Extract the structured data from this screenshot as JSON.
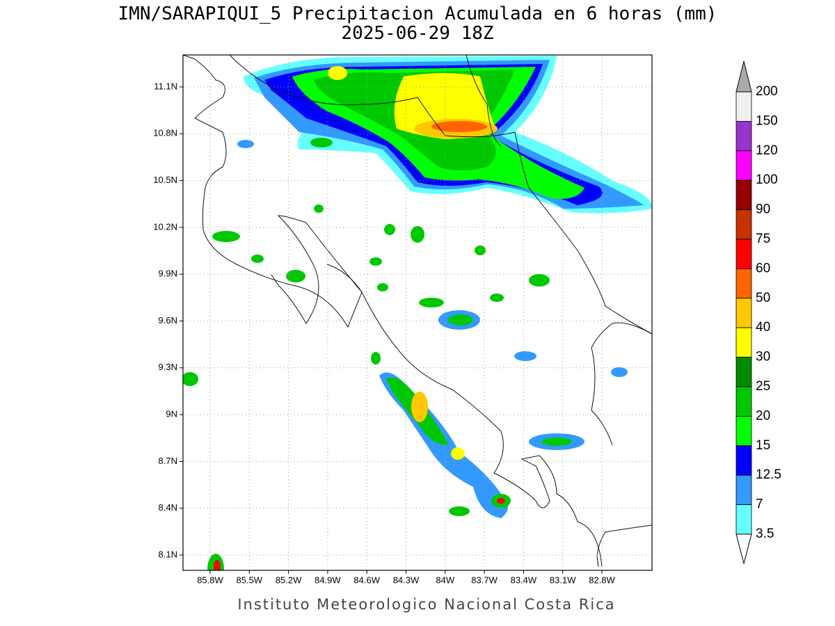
{
  "title": "IMN/SARAPIQUI_5 Precipitacion Acumulada en 6 horas (mm)",
  "subtitle": "2025-06-29 18Z",
  "footer": "Instituto Meteorologico Nacional Costa Rica",
  "map": {
    "lat_labels": [
      "11.1N",
      "10.8N",
      "10.5N",
      "10.2N",
      "9.9N",
      "9.6N",
      "9.3N",
      "9N",
      "8.7N",
      "8.4N",
      "8.1N"
    ],
    "lon_labels": [
      "85.8W",
      "85.5W",
      "85.2W",
      "84.9W",
      "84.6W",
      "84.3W",
      "84W",
      "83.7W",
      "83.4W",
      "83.1W",
      "82.8W"
    ]
  },
  "colorbar": {
    "labels": [
      "200",
      "150",
      "120",
      "100",
      "90",
      "75",
      "60",
      "50",
      "40",
      "30",
      "25",
      "20",
      "15",
      "12.5",
      "7",
      "3.5"
    ],
    "colors": [
      "#f0f0f0",
      "#9933cc",
      "#ff00ff",
      "#960000",
      "#c83200",
      "#ff0000",
      "#ff6400",
      "#ffc800",
      "#ffff00",
      "#008c00",
      "#00c800",
      "#00ff00",
      "#0000ff",
      "#3399ff",
      "#66ffff"
    ],
    "over_color": "#aaaaaa",
    "under_color": "#ffffff"
  }
}
